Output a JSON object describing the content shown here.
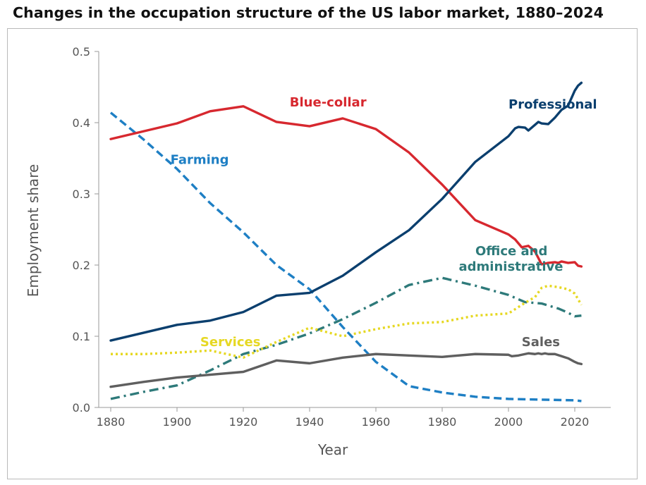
{
  "chart_data": {
    "type": "line",
    "title": "Changes in the occupation structure of the US labor market, 1880–2024",
    "xlabel": "Year",
    "ylabel": "Employment share",
    "xlim": [
      1880,
      2024
    ],
    "ylim": [
      0,
      0.5
    ],
    "x_ticks": [
      "1880",
      "1900",
      "1920",
      "1940",
      "1960",
      "1980",
      "2000",
      "2020"
    ],
    "y_ticks": [
      "0.0",
      "0.1",
      "0.2",
      "0.3",
      "0.4",
      "0.5"
    ],
    "series": [
      {
        "name": "Blue-collar",
        "color": "#d7282f",
        "dash": "solid",
        "x": [
          1880,
          1890,
          1900,
          1910,
          1920,
          1930,
          1940,
          1950,
          1960,
          1970,
          1980,
          1990,
          2000,
          2002,
          2004,
          2006,
          2008,
          2009,
          2010,
          2012,
          2014,
          2015,
          2016,
          2018,
          2020,
          2021,
          2022
        ],
        "values": [
          0.377,
          0.388,
          0.399,
          0.416,
          0.423,
          0.401,
          0.395,
          0.406,
          0.391,
          0.358,
          0.313,
          0.263,
          0.243,
          0.236,
          0.225,
          0.227,
          0.219,
          0.21,
          0.201,
          0.203,
          0.204,
          0.203,
          0.205,
          0.203,
          0.204,
          0.199,
          0.198
        ]
      },
      {
        "name": "Professional",
        "color": "#0b3f6e",
        "dash": "solid",
        "x": [
          1880,
          1890,
          1900,
          1910,
          1920,
          1930,
          1940,
          1950,
          1960,
          1970,
          1980,
          1990,
          2000,
          2002,
          2003,
          2005,
          2006,
          2008,
          2009,
          2010,
          2012,
          2014,
          2016,
          2018,
          2020,
          2021,
          2022
        ],
        "values": [
          0.094,
          0.105,
          0.116,
          0.122,
          0.134,
          0.157,
          0.161,
          0.185,
          0.218,
          0.249,
          0.293,
          0.345,
          0.381,
          0.392,
          0.394,
          0.393,
          0.389,
          0.397,
          0.401,
          0.399,
          0.398,
          0.407,
          0.418,
          0.424,
          0.445,
          0.452,
          0.456
        ]
      },
      {
        "name": "Farming",
        "color": "#1e7fc4",
        "dash": "dash",
        "x": [
          1880,
          1890,
          1900,
          1910,
          1920,
          1930,
          1940,
          1950,
          1960,
          1970,
          1980,
          1990,
          2000,
          2010,
          2020,
          2022
        ],
        "values": [
          0.414,
          0.376,
          0.335,
          0.287,
          0.246,
          0.2,
          0.166,
          0.113,
          0.064,
          0.03,
          0.021,
          0.015,
          0.012,
          0.011,
          0.01,
          0.009
        ]
      },
      {
        "name": "Office and administrative",
        "color": "#2e7a7a",
        "dash": "dashdot",
        "x": [
          1880,
          1890,
          1900,
          1910,
          1920,
          1930,
          1940,
          1950,
          1960,
          1970,
          1980,
          1990,
          2000,
          2005,
          2010,
          2015,
          2018,
          2020,
          2022
        ],
        "values": [
          0.012,
          0.022,
          0.031,
          0.052,
          0.075,
          0.088,
          0.104,
          0.124,
          0.147,
          0.172,
          0.182,
          0.171,
          0.158,
          0.148,
          0.146,
          0.139,
          0.133,
          0.128,
          0.129
        ]
      },
      {
        "name": "Services",
        "color": "#e6d823",
        "dash": "dot",
        "x": [
          1880,
          1890,
          1900,
          1910,
          1920,
          1930,
          1940,
          1950,
          1960,
          1970,
          1980,
          1990,
          2000,
          2005,
          2008,
          2010,
          2012,
          2015,
          2018,
          2020,
          2022
        ],
        "values": [
          0.075,
          0.075,
          0.077,
          0.08,
          0.07,
          0.092,
          0.112,
          0.1,
          0.11,
          0.118,
          0.12,
          0.129,
          0.132,
          0.147,
          0.155,
          0.168,
          0.171,
          0.169,
          0.166,
          0.16,
          0.144
        ]
      },
      {
        "name": "Sales",
        "color": "#5f5f5f",
        "dash": "solid",
        "x": [
          1880,
          1890,
          1900,
          1910,
          1920,
          1930,
          1940,
          1950,
          1960,
          1970,
          1980,
          1990,
          2000,
          2001,
          2003,
          2005,
          2006,
          2008,
          2009,
          2010,
          2011,
          2012,
          2014,
          2016,
          2018,
          2020,
          2021,
          2022
        ],
        "values": [
          0.029,
          0.036,
          0.042,
          0.046,
          0.05,
          0.066,
          0.062,
          0.07,
          0.075,
          0.073,
          0.071,
          0.075,
          0.074,
          0.072,
          0.073,
          0.075,
          0.076,
          0.075,
          0.076,
          0.075,
          0.076,
          0.075,
          0.075,
          0.072,
          0.069,
          0.064,
          0.062,
          0.061
        ]
      }
    ],
    "annotations": [
      {
        "text": "Blue-collar",
        "series": "Blue-collar",
        "at_x": 1934,
        "at_y": 0.423
      },
      {
        "text": "Professional",
        "series": "Professional",
        "at_x": 2000,
        "at_y": 0.42
      },
      {
        "text": "Farming",
        "series": "Farming",
        "at_x": 1898,
        "at_y": 0.342
      },
      {
        "text": "Office and",
        "series": "Office and administrative",
        "at_x": 1990,
        "at_y": 0.214
      },
      {
        "text": "administrative",
        "series": "Office and administrative",
        "at_x": 1985,
        "at_y": 0.192
      },
      {
        "text": "Services",
        "series": "Services",
        "at_x": 1907,
        "at_y": 0.086
      },
      {
        "text": "Sales",
        "series": "Sales",
        "at_x": 2004,
        "at_y": 0.086
      }
    ]
  }
}
